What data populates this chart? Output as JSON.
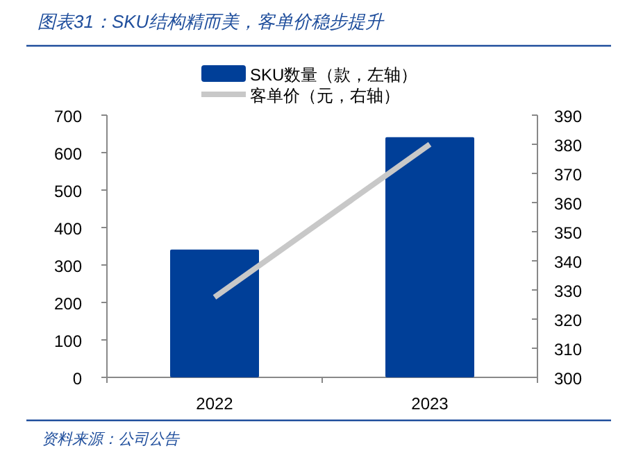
{
  "chart_data": {
    "type": "bar",
    "title": "图表31：SKU结构精而美，客单价稳步提升",
    "categories": [
      "2022",
      "2023"
    ],
    "series": [
      {
        "name": "SKU数量（款，左轴）",
        "color": "#003f98",
        "values": [
          341,
          641
        ]
      },
      {
        "name": "客单价（元，右轴）",
        "type": "line",
        "axis": "y2",
        "color": "#c8c8c8",
        "values": [
          327.5,
          380
        ]
      }
    ],
    "ylim": [
      0,
      700
    ],
    "yticks": [
      0,
      100,
      200,
      300,
      400,
      500,
      600,
      700
    ],
    "y2lim": [
      300,
      390
    ],
    "y2ticks": [
      300,
      310,
      320,
      330,
      340,
      350,
      360,
      370,
      380,
      390
    ],
    "legend": "top",
    "annotations": [
      "资料来源：公司公告"
    ]
  }
}
